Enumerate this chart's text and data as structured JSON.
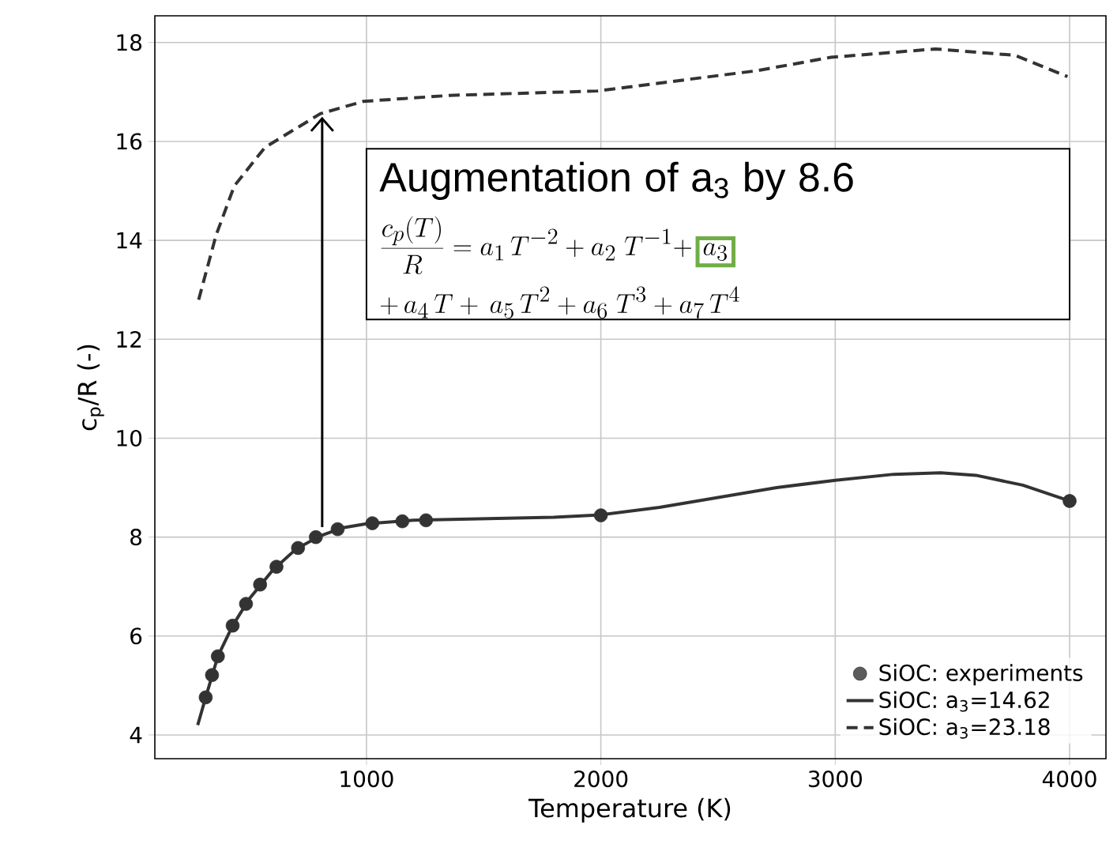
{
  "chart_data": {
    "type": "line",
    "xlabel": "Temperature (K)",
    "ylabel": "c$_{p}$/R (-)",
    "xlim": [
      97,
      4155
    ],
    "ylim": [
      3.52,
      18.54
    ],
    "xticks": [
      1000,
      2000,
      3000,
      4000
    ],
    "yticks": [
      4,
      6,
      8,
      10,
      12,
      14,
      16,
      18
    ],
    "grid": true,
    "legend": "bottom right",
    "series": [
      {
        "name": "SiOC: experiments",
        "type": "scatter",
        "marker": "circle",
        "color": "#333333",
        "x": [
          314,
          341,
          366,
          429,
          486,
          546,
          616,
          708,
          784,
          877,
          1025,
          1153,
          1254,
          2000,
          4000
        ],
        "values": [
          4.76,
          5.21,
          5.59,
          6.21,
          6.65,
          7.04,
          7.4,
          7.78,
          8.0,
          8.16,
          8.28,
          8.32,
          8.34,
          8.44,
          8.73
        ]
      },
      {
        "name": "SiOC: a$_{3}$=14.62",
        "line_style": "solid",
        "color": "#333333",
        "x": [
          280,
          314,
          366,
          429,
          500,
          600,
          700,
          800,
          900,
          1000,
          1200,
          1500,
          1800,
          2000,
          2250,
          2500,
          2750,
          3000,
          3250,
          3450,
          3600,
          3800,
          4000
        ],
        "values": [
          4.2,
          4.76,
          5.59,
          6.21,
          6.75,
          7.33,
          7.76,
          8.02,
          8.19,
          8.27,
          8.34,
          8.37,
          8.4,
          8.45,
          8.6,
          8.8,
          9.0,
          9.15,
          9.27,
          9.3,
          9.25,
          9.05,
          8.73
        ]
      },
      {
        "name": "SiOC: a$_{3}$=23.18",
        "line_style": "dashed",
        "color": "#333333",
        "x": [
          284,
          358,
          436,
          567,
          803,
          987,
          1354,
          1984,
          2665,
          2981,
          3427,
          3768,
          3991
        ],
        "values": [
          12.8,
          14.1,
          15.1,
          15.88,
          16.56,
          16.81,
          16.93,
          17.02,
          17.43,
          17.7,
          17.87,
          17.74,
          17.31
        ]
      }
    ],
    "annotations": [
      {
        "text": "Augmentation of a$_{3}$ by 8.6",
        "x": 811,
        "y": 16.5
      },
      "\\frac{c_p(T)}{R} = a_1\\,T^{-2} + a_2\\;T^{-1} +",
      "a_3",
      "+\\,a_4\\,T + \\,a_5\\,T^2 + a_6\\;T^3 + a_7\\,T^4"
    ]
  }
}
